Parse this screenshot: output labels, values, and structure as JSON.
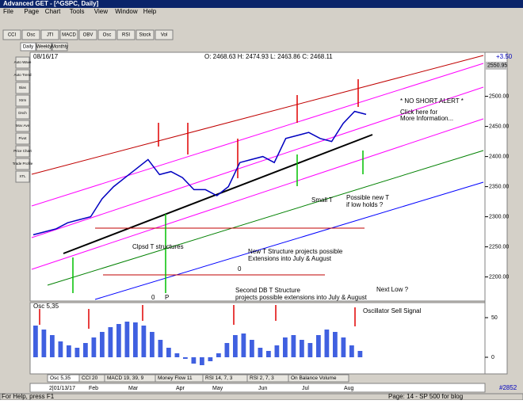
{
  "window": {
    "title": "Advanced GET - [^GSPC, Daily]"
  },
  "menu": [
    "File",
    "Page",
    "Chart",
    "Tools",
    "View",
    "Window",
    "Help"
  ],
  "toolbar": [
    "CCI",
    "Osc",
    "JTI",
    "MACD",
    "OBV",
    "Osc",
    "RSI",
    "Stock",
    "Vol"
  ],
  "tabs": [
    "Daily",
    "Weekly",
    "Monthly"
  ],
  "left_tools": [
    "Auto Wave",
    "Auto Trend",
    "Bias",
    "Xtrm",
    "Dnch",
    "Mov Ave",
    "Pivot",
    "Price Chart",
    "Trade Profile",
    "XTL"
  ],
  "chart": {
    "date": "08/16/17",
    "ohlc": "O: 2468.63   H: 2474.93   L: 2463.86   C: 2468.11",
    "change": "+3.50",
    "last": 2550.95,
    "ylim": [
      2160,
      2560
    ],
    "yticks": [
      {
        "value": 2200,
        "label": "2200.00"
      },
      {
        "value": 2250,
        "label": "2250.00"
      },
      {
        "value": 2300,
        "label": "2300.00"
      },
      {
        "value": 2350,
        "label": "2350.00"
      },
      {
        "value": 2400,
        "label": "2400.00"
      },
      {
        "value": 2450,
        "label": "2450.00"
      },
      {
        "value": 2500,
        "label": "2500.00"
      }
    ],
    "closes": [
      2270,
      2275,
      2280,
      2290,
      2295,
      2300,
      2330,
      2350,
      2365,
      2380,
      2395,
      2370,
      2375,
      2365,
      2345,
      2345,
      2335,
      2350,
      2390,
      2395,
      2400,
      2390,
      2430,
      2435,
      2440,
      2430,
      2425,
      2455,
      2475,
      2470
    ],
    "annotations": [
      "* NO SHORT ALERT *",
      "Click here for",
      "More Information...",
      "Small T",
      "Possible new T",
      "if low holds ?",
      "Clpsd T structures",
      "New T Structure projects possible",
      "Extensions into July & August",
      "Second DB T Structure",
      "projects possible extensions into July & August",
      "Next Low ?",
      "0",
      "0",
      "P"
    ]
  },
  "oscillator": {
    "label": "Osc 5,35",
    "note": "Oscillator Sell Signal",
    "ylim": [
      -19,
      69
    ],
    "yticks": [
      0,
      50
    ],
    "values": [
      40,
      35,
      28,
      20,
      15,
      12,
      18,
      25,
      32,
      38,
      42,
      45,
      44,
      40,
      32,
      22,
      12,
      5,
      -2,
      -8,
      -10,
      -5,
      5,
      18,
      28,
      30,
      22,
      12,
      8,
      15,
      25,
      28,
      22,
      18,
      28,
      35,
      32,
      25,
      15,
      8
    ]
  },
  "indicator_tabs": [
    "Osc 5,35",
    "CCI 20",
    "MACD 19, 39, 9",
    "Money Flow 11",
    "RSI 14, 7, 3",
    "RSI 2, 7, 3",
    "On Balance Volume"
  ],
  "dates": [
    "2|01/13/17",
    "Feb",
    "Mar",
    "Apr",
    "May",
    "Jun",
    "Jul",
    "Aug"
  ],
  "status": {
    "help": "For Help, press F1",
    "page": "Page: 14 - SP 500 for blog",
    "code": "#2852"
  }
}
